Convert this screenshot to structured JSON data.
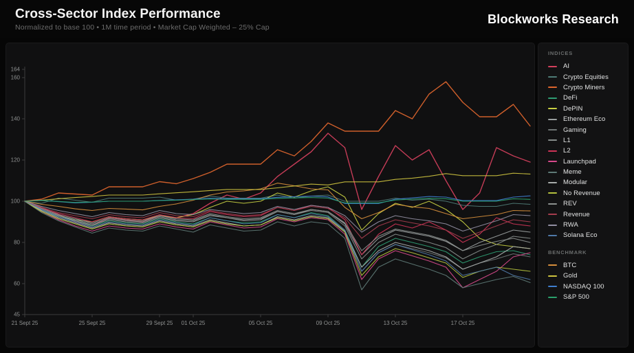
{
  "header": {
    "title": "Cross-Sector Index Performance",
    "subtitle": "Normalized to base 100 • 1M time period • Market Cap Weighted – 25% Cap",
    "brand": "Blockworks Research"
  },
  "legend": {
    "indices_label": "INDICES",
    "benchmark_label": "BENCHMARK"
  },
  "chart_data": {
    "type": "line",
    "title": "Cross-Sector Index Performance",
    "normalized_base": 100,
    "time_period": "1M",
    "weighting": "Market Cap Weighted – 25% Cap",
    "grid": false,
    "legend_position": "right-panel",
    "ylim": [
      45,
      164
    ],
    "y_ticks": [
      164,
      160,
      140,
      120,
      100,
      80,
      60,
      45
    ],
    "x_domain_days": [
      0,
      30
    ],
    "x_ticks": [
      {
        "day": 0,
        "label": "21 Sept 25"
      },
      {
        "day": 4,
        "label": "25 Sept 25"
      },
      {
        "day": 8,
        "label": "29 Sept 25"
      },
      {
        "day": 10,
        "label": "01 Oct 25"
      },
      {
        "day": 14,
        "label": "05 Oct 25"
      },
      {
        "day": 18,
        "label": "09 Oct 25"
      },
      {
        "day": 22,
        "label": "13 Oct 25"
      },
      {
        "day": 26,
        "label": "17 Oct 25"
      }
    ],
    "series": [
      {
        "name": "AI",
        "group": "indices",
        "color": "#d5405d",
        "values": [
          100,
          97,
          93.5,
          90,
          88,
          92,
          91,
          90,
          93,
          92,
          94,
          99,
          103,
          101,
          104,
          112,
          118,
          124,
          133,
          126,
          96,
          112,
          127,
          120,
          125,
          110,
          96,
          104,
          126,
          122,
          119
        ]
      },
      {
        "name": "Crypto Equities",
        "group": "indices",
        "color": "#4f7d77",
        "values": [
          100,
          99,
          101.5,
          100.5,
          99.5,
          101.5,
          101.5,
          101.5,
          102,
          100.5,
          101,
          102.5,
          101.5,
          101.5,
          101.5,
          103,
          101.5,
          102.5,
          103,
          100,
          100,
          100,
          101.5,
          100.5,
          101,
          100,
          98,
          97.5,
          97.5,
          99,
          98.5
        ]
      },
      {
        "name": "Crypto Miners",
        "group": "indices",
        "color": "#e0662e",
        "values": [
          100,
          101,
          104,
          103.5,
          103,
          107,
          107,
          107,
          109.5,
          108.5,
          111,
          114,
          118,
          118,
          118,
          125,
          122,
          129,
          138,
          134,
          134,
          134,
          144,
          140,
          152,
          158,
          148,
          141,
          141,
          147,
          136.5
        ]
      },
      {
        "name": "DeFi",
        "group": "indices",
        "color": "#2f9e74",
        "values": [
          100,
          95.5,
          92.5,
          90.5,
          88,
          90.5,
          89.5,
          89,
          91.5,
          90,
          89,
          92,
          90.5,
          89.5,
          90,
          93.5,
          92,
          94.5,
          93,
          86,
          68,
          78,
          82,
          80,
          78,
          75.5,
          70,
          73,
          75.5,
          76,
          74
        ]
      },
      {
        "name": "DePIN",
        "group": "indices",
        "color": "#c9d142",
        "values": [
          100,
          96,
          93,
          91,
          90,
          92.5,
          91.5,
          91,
          93,
          92,
          93.5,
          97,
          100,
          99,
          100,
          104,
          102,
          105,
          107,
          102,
          86,
          94,
          99,
          97,
          100,
          96,
          90,
          82,
          79,
          78,
          77
        ]
      },
      {
        "name": "Ethereum Eco",
        "group": "indices",
        "color": "#9aa0a0",
        "values": [
          100,
          96,
          93,
          90.5,
          88.5,
          91,
          90,
          89.5,
          92,
          90.5,
          90,
          93,
          92,
          90.5,
          91,
          95,
          93.5,
          96,
          95,
          89,
          74,
          82,
          86,
          84.5,
          83,
          80.5,
          76,
          80,
          83,
          86,
          85
        ]
      },
      {
        "name": "Gaming",
        "group": "indices",
        "color": "#6f7575",
        "values": [
          100,
          95,
          91.5,
          89,
          86.5,
          89,
          88,
          87.5,
          90,
          88.5,
          87.5,
          90.5,
          89,
          88,
          88.5,
          92,
          90.5,
          92.5,
          91.5,
          85,
          66,
          75,
          79,
          77,
          75,
          72.5,
          67,
          70,
          72,
          74.5,
          73
        ]
      },
      {
        "name": "L1",
        "group": "indices",
        "color": "#878d8b",
        "values": [
          100,
          96,
          93,
          91,
          89,
          91.5,
          90.5,
          90,
          92.5,
          91,
          90.5,
          93.5,
          92,
          91,
          91.5,
          95,
          93.5,
          95.5,
          94.5,
          88,
          72,
          80,
          84,
          82,
          80,
          77.5,
          72,
          76,
          79,
          83,
          82
        ]
      },
      {
        "name": "L2",
        "group": "indices",
        "color": "#cf3457",
        "values": [
          100,
          96.5,
          94,
          92,
          90,
          92.5,
          91.5,
          91,
          93.5,
          92,
          91.5,
          95,
          93.5,
          92.5,
          93,
          97,
          95.5,
          98,
          97,
          91,
          74,
          84,
          89,
          87,
          90,
          86,
          80,
          84,
          92,
          89,
          88
        ]
      },
      {
        "name": "Launchpad",
        "group": "indices",
        "color": "#d84a8c",
        "values": [
          100,
          95,
          91,
          88,
          85.5,
          88,
          87,
          86.5,
          89,
          87.5,
          86.5,
          90,
          88.5,
          87,
          87.5,
          91.5,
          90,
          92,
          91,
          84,
          62,
          72,
          76,
          73.5,
          71,
          68,
          58,
          62,
          66,
          73,
          75
        ]
      },
      {
        "name": "Meme",
        "group": "indices",
        "color": "#5e7a76",
        "values": [
          100,
          94.5,
          90.5,
          87.5,
          84.5,
          87,
          86,
          85.5,
          88,
          86.5,
          85,
          88.5,
          87,
          85.5,
          86,
          90,
          88,
          90,
          89,
          82,
          57,
          68,
          72,
          69.5,
          67,
          64,
          58,
          60,
          62,
          63.5,
          60.5
        ]
      },
      {
        "name": "Modular",
        "group": "indices",
        "color": "#a8adab",
        "values": [
          100,
          95.5,
          92,
          89.5,
          87,
          89.5,
          88.5,
          88,
          90.5,
          89,
          88,
          91,
          89.5,
          88,
          88.5,
          92.5,
          91,
          93,
          92,
          85.5,
          68,
          76,
          80,
          78,
          76,
          73,
          67,
          70,
          73,
          78,
          77
        ]
      },
      {
        "name": "No Revenue",
        "group": "indices",
        "color": "#b5c23d",
        "values": [
          100,
          95,
          91.5,
          89,
          86.5,
          89,
          88,
          87.5,
          90,
          88.5,
          87.5,
          90.5,
          89,
          88,
          88.5,
          92,
          90.5,
          92.5,
          91.5,
          85,
          64,
          73,
          77,
          75,
          72.5,
          70,
          63,
          66,
          68,
          67,
          66
        ]
      },
      {
        "name": "REV",
        "group": "indices",
        "color": "#8d9290",
        "values": [
          100,
          96.5,
          93.5,
          91.5,
          89.5,
          92,
          91,
          90.5,
          93,
          91.5,
          91,
          94,
          92.5,
          91.5,
          92,
          95.5,
          94,
          96,
          95,
          89.5,
          76,
          83,
          86.5,
          85,
          83.5,
          81,
          76,
          78.5,
          80.5,
          82,
          80
        ]
      },
      {
        "name": "Revenue",
        "group": "indices",
        "color": "#a63d4e",
        "values": [
          100,
          97,
          94.5,
          93,
          91.5,
          93.5,
          92.5,
          92,
          94.5,
          93,
          92.5,
          95.5,
          94,
          93,
          93.5,
          97,
          95.5,
          97.5,
          96.5,
          92,
          82,
          88,
          91,
          89.5,
          88,
          86,
          82,
          85,
          88,
          91,
          90
        ]
      },
      {
        "name": "RWA",
        "group": "indices",
        "color": "#938fa3",
        "values": [
          100,
          97.5,
          95.5,
          94,
          92.5,
          94.5,
          93.5,
          93,
          95.5,
          94,
          93.5,
          96,
          95,
          94,
          94.5,
          97.5,
          96,
          98,
          97,
          93,
          85,
          90,
          93,
          91.5,
          90.5,
          89,
          85.5,
          88,
          90.5,
          93.5,
          93
        ]
      },
      {
        "name": "Solana Eco",
        "group": "indices",
        "color": "#5079a8",
        "values": [
          100,
          96,
          92.5,
          90,
          87.5,
          90,
          89,
          88.5,
          91,
          89.5,
          88.5,
          92,
          90.5,
          89,
          89.5,
          93.5,
          92,
          94,
          92.5,
          86,
          66,
          75,
          79,
          76.5,
          74,
          71,
          64,
          66,
          68,
          64,
          62
        ]
      },
      {
        "name": "BTC",
        "group": "benchmark",
        "color": "#d78f3c",
        "values": [
          100,
          98.5,
          97.5,
          96.3,
          95.5,
          96.5,
          96.2,
          95.8,
          97.5,
          98.7,
          100.5,
          103,
          104.5,
          105,
          106,
          108.8,
          107.5,
          106,
          105.5,
          97,
          91.5,
          94.5,
          98.5,
          97.3,
          96.5,
          94,
          91.5,
          92.5,
          93.5,
          95.5,
          95.3
        ]
      },
      {
        "name": "Gold",
        "group": "benchmark",
        "color": "#cfc43f",
        "values": [
          100,
          100.5,
          101.2,
          101.8,
          102.3,
          103,
          103,
          103,
          103.6,
          104.1,
          104.6,
          105.2,
          105.7,
          105.7,
          105.7,
          106.5,
          107.4,
          108.3,
          107.9,
          109.4,
          109.4,
          109.4,
          110.6,
          111.2,
          112.1,
          113.4,
          112.4,
          112.4,
          112.4,
          113.6,
          113.2
        ]
      },
      {
        "name": "NASDAQ 100",
        "group": "benchmark",
        "color": "#3f7fd1",
        "values": [
          100,
          100.4,
          99.8,
          99.2,
          99.5,
          100,
          100,
          100,
          100.4,
          100.7,
          101,
          101.5,
          101.2,
          101.2,
          101.2,
          101.9,
          102.2,
          102.5,
          102.1,
          98.9,
          98.9,
          98.9,
          101,
          101.6,
          102.3,
          102,
          100.3,
          100.3,
          100.3,
          102,
          102.6
        ]
      },
      {
        "name": "S&P 500",
        "group": "benchmark",
        "color": "#2aa06c",
        "values": [
          100,
          100.3,
          99.9,
          99.4,
          99.6,
          100,
          100,
          100,
          100.3,
          100.5,
          100.8,
          101.1,
          100.9,
          100.9,
          100.9,
          101.4,
          101.6,
          101.8,
          101.5,
          99.2,
          99.2,
          99.2,
          100.6,
          101,
          101.4,
          101.2,
          100,
          100,
          100,
          101.2,
          100.9
        ]
      }
    ]
  }
}
